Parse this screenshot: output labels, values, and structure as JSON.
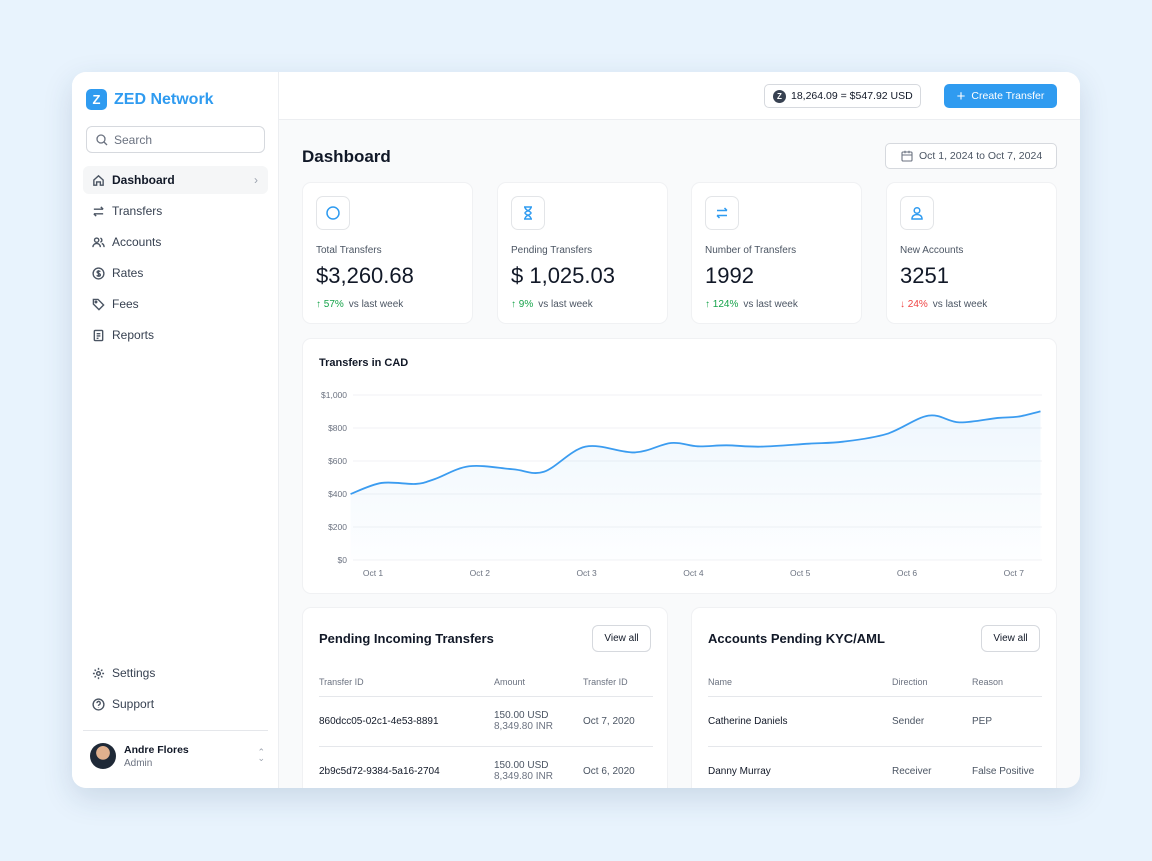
{
  "app": {
    "name": "ZED Network",
    "logo_letter": "Z",
    "brand_color": "#2f9bf0"
  },
  "sidebar": {
    "search_placeholder": "Search",
    "items": [
      {
        "label": "Dashboard",
        "icon": "home-icon",
        "active": true
      },
      {
        "label": "Transfers",
        "icon": "arrows-icon"
      },
      {
        "label": "Accounts",
        "icon": "users-icon"
      },
      {
        "label": "Rates",
        "icon": "dollar-circle-icon"
      },
      {
        "label": "Fees",
        "icon": "tag-icon"
      },
      {
        "label": "Reports",
        "icon": "document-icon"
      }
    ],
    "bottom_items": [
      {
        "label": "Settings",
        "icon": "gear-icon"
      },
      {
        "label": "Support",
        "icon": "help-icon"
      }
    ],
    "user": {
      "name": "Andre Flores",
      "role": "Admin"
    }
  },
  "header": {
    "balance": "18,264.09 = $547.92 USD",
    "create_label": "Create Transfer"
  },
  "page": {
    "title": "Dashboard",
    "date_range": "Oct 1, 2024 to Oct 7, 2024"
  },
  "stats": [
    {
      "label": "Total Transfers",
      "value": "$3,260.68",
      "change": "57%",
      "direction": "up",
      "suffix": "vs last week",
      "icon": "circle-icon"
    },
    {
      "label": "Pending Transfers",
      "value": "$ 1,025.03",
      "change": "9%",
      "direction": "up",
      "suffix": "vs last week",
      "icon": "hourglass-icon"
    },
    {
      "label": "Number of Transfers",
      "value": "1992",
      "change": "124%",
      "direction": "up",
      "suffix": "vs last week",
      "icon": "arrows-icon"
    },
    {
      "label": "New Accounts",
      "value": "3251",
      "change": "24%",
      "direction": "down",
      "suffix": "vs last week",
      "icon": "user-icon"
    }
  ],
  "chart_data": {
    "type": "area",
    "title": "Transfers in CAD",
    "ylim": [
      0,
      1000
    ],
    "yticks": [
      "$0",
      "$200",
      "$400",
      "$600",
      "$800",
      "$1,000"
    ],
    "ytick_values": [
      0,
      200,
      400,
      600,
      800,
      1000
    ],
    "xticks": [
      "Oct 1",
      "Oct 2",
      "Oct 3",
      "Oct 4",
      "Oct 5",
      "Oct 6",
      "Oct 7"
    ],
    "grid": true,
    "color": "#3b9cf0",
    "x_unit": "day of October",
    "x": [
      0.79,
      1.08,
      1.4,
      1.58,
      1.9,
      2.31,
      2.6,
      2.99,
      3.45,
      3.79,
      4.04,
      4.31,
      4.63,
      5.08,
      5.4,
      5.81,
      6.2,
      6.49,
      6.85,
      7.04,
      7.25
    ],
    "values": [
      400,
      467,
      461,
      491,
      568,
      550,
      535,
      687,
      652,
      709,
      689,
      695,
      687,
      705,
      717,
      764,
      875,
      834,
      861,
      869,
      901
    ]
  },
  "incoming": {
    "title": "Pending Incoming Transfers",
    "view_all": "View all",
    "columns": [
      "Transfer ID",
      "Amount",
      "Transfer ID"
    ],
    "rows": [
      {
        "id": "860dcc05-02c1-4e53-8891",
        "amount": "150.00 USD",
        "converted": "8,349.80 INR",
        "date": "Oct 7, 2020"
      },
      {
        "id": "2b9c5d72-9384-5a16-2704",
        "amount": "150.00 USD",
        "converted": "8,349.80 INR",
        "date": "Oct 6, 2020"
      }
    ]
  },
  "kyc": {
    "title": "Accounts Pending KYC/AML",
    "view_all": "View all",
    "columns": [
      "Name",
      "Direction",
      "Reason"
    ],
    "rows": [
      {
        "name": "Catherine Daniels",
        "direction": "Sender",
        "reason": "PEP"
      },
      {
        "name": "Danny Murray",
        "direction": "Receiver",
        "reason": "False Positive"
      }
    ]
  }
}
